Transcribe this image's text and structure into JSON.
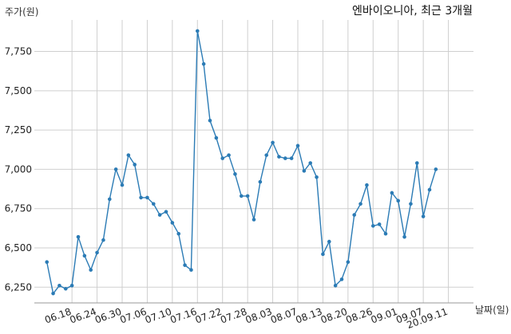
{
  "chart_data": {
    "type": "line",
    "title": "엔바이오니아, 최근 3개월",
    "ylabel": "주가(원)",
    "xlabel": "날짜(일)",
    "ylim": [
      6150,
      7920
    ],
    "yticks": [
      6250,
      6500,
      6750,
      7000,
      7250,
      7500,
      7750
    ],
    "ytick_labels": [
      "6,250",
      "6,500",
      "6,750",
      "7,000",
      "7,250",
      "7,500",
      "7,750"
    ],
    "xticks": [
      4,
      8,
      12,
      16,
      20,
      24,
      28,
      32,
      36,
      40,
      44,
      48,
      52,
      56,
      60,
      64
    ],
    "xtick_labels": [
      "06.18",
      "06.24",
      "06.30",
      "07.06",
      "07.10",
      "07.16",
      "07.22",
      "07.28",
      "08.03",
      "08.07",
      "08.13",
      "08.20",
      "08.26",
      "09.01",
      "09.07",
      "20.09.11"
    ],
    "xlim": [
      -2,
      68
    ],
    "grid": true,
    "color": "#2b7bb5",
    "series": [
      {
        "name": "",
        "values": [
          6410,
          6210,
          6260,
          6240,
          6260,
          6570,
          6450,
          6360,
          6470,
          6550,
          6810,
          7000,
          6900,
          7090,
          7030,
          6820,
          6820,
          6780,
          6710,
          6730,
          6660,
          6590,
          6390,
          6360,
          7880,
          7670,
          7310,
          7200,
          7070,
          7090,
          6970,
          6830,
          6830,
          6680,
          6920,
          7090,
          7170,
          7080,
          7070,
          7070,
          7150,
          6990,
          7040,
          6950,
          6460,
          6540,
          6260,
          6300,
          6410,
          6710,
          6780,
          6900,
          6640,
          6650,
          6590,
          6850,
          6800,
          6570,
          6780,
          7040,
          6700,
          6870,
          7000
        ]
      }
    ]
  }
}
